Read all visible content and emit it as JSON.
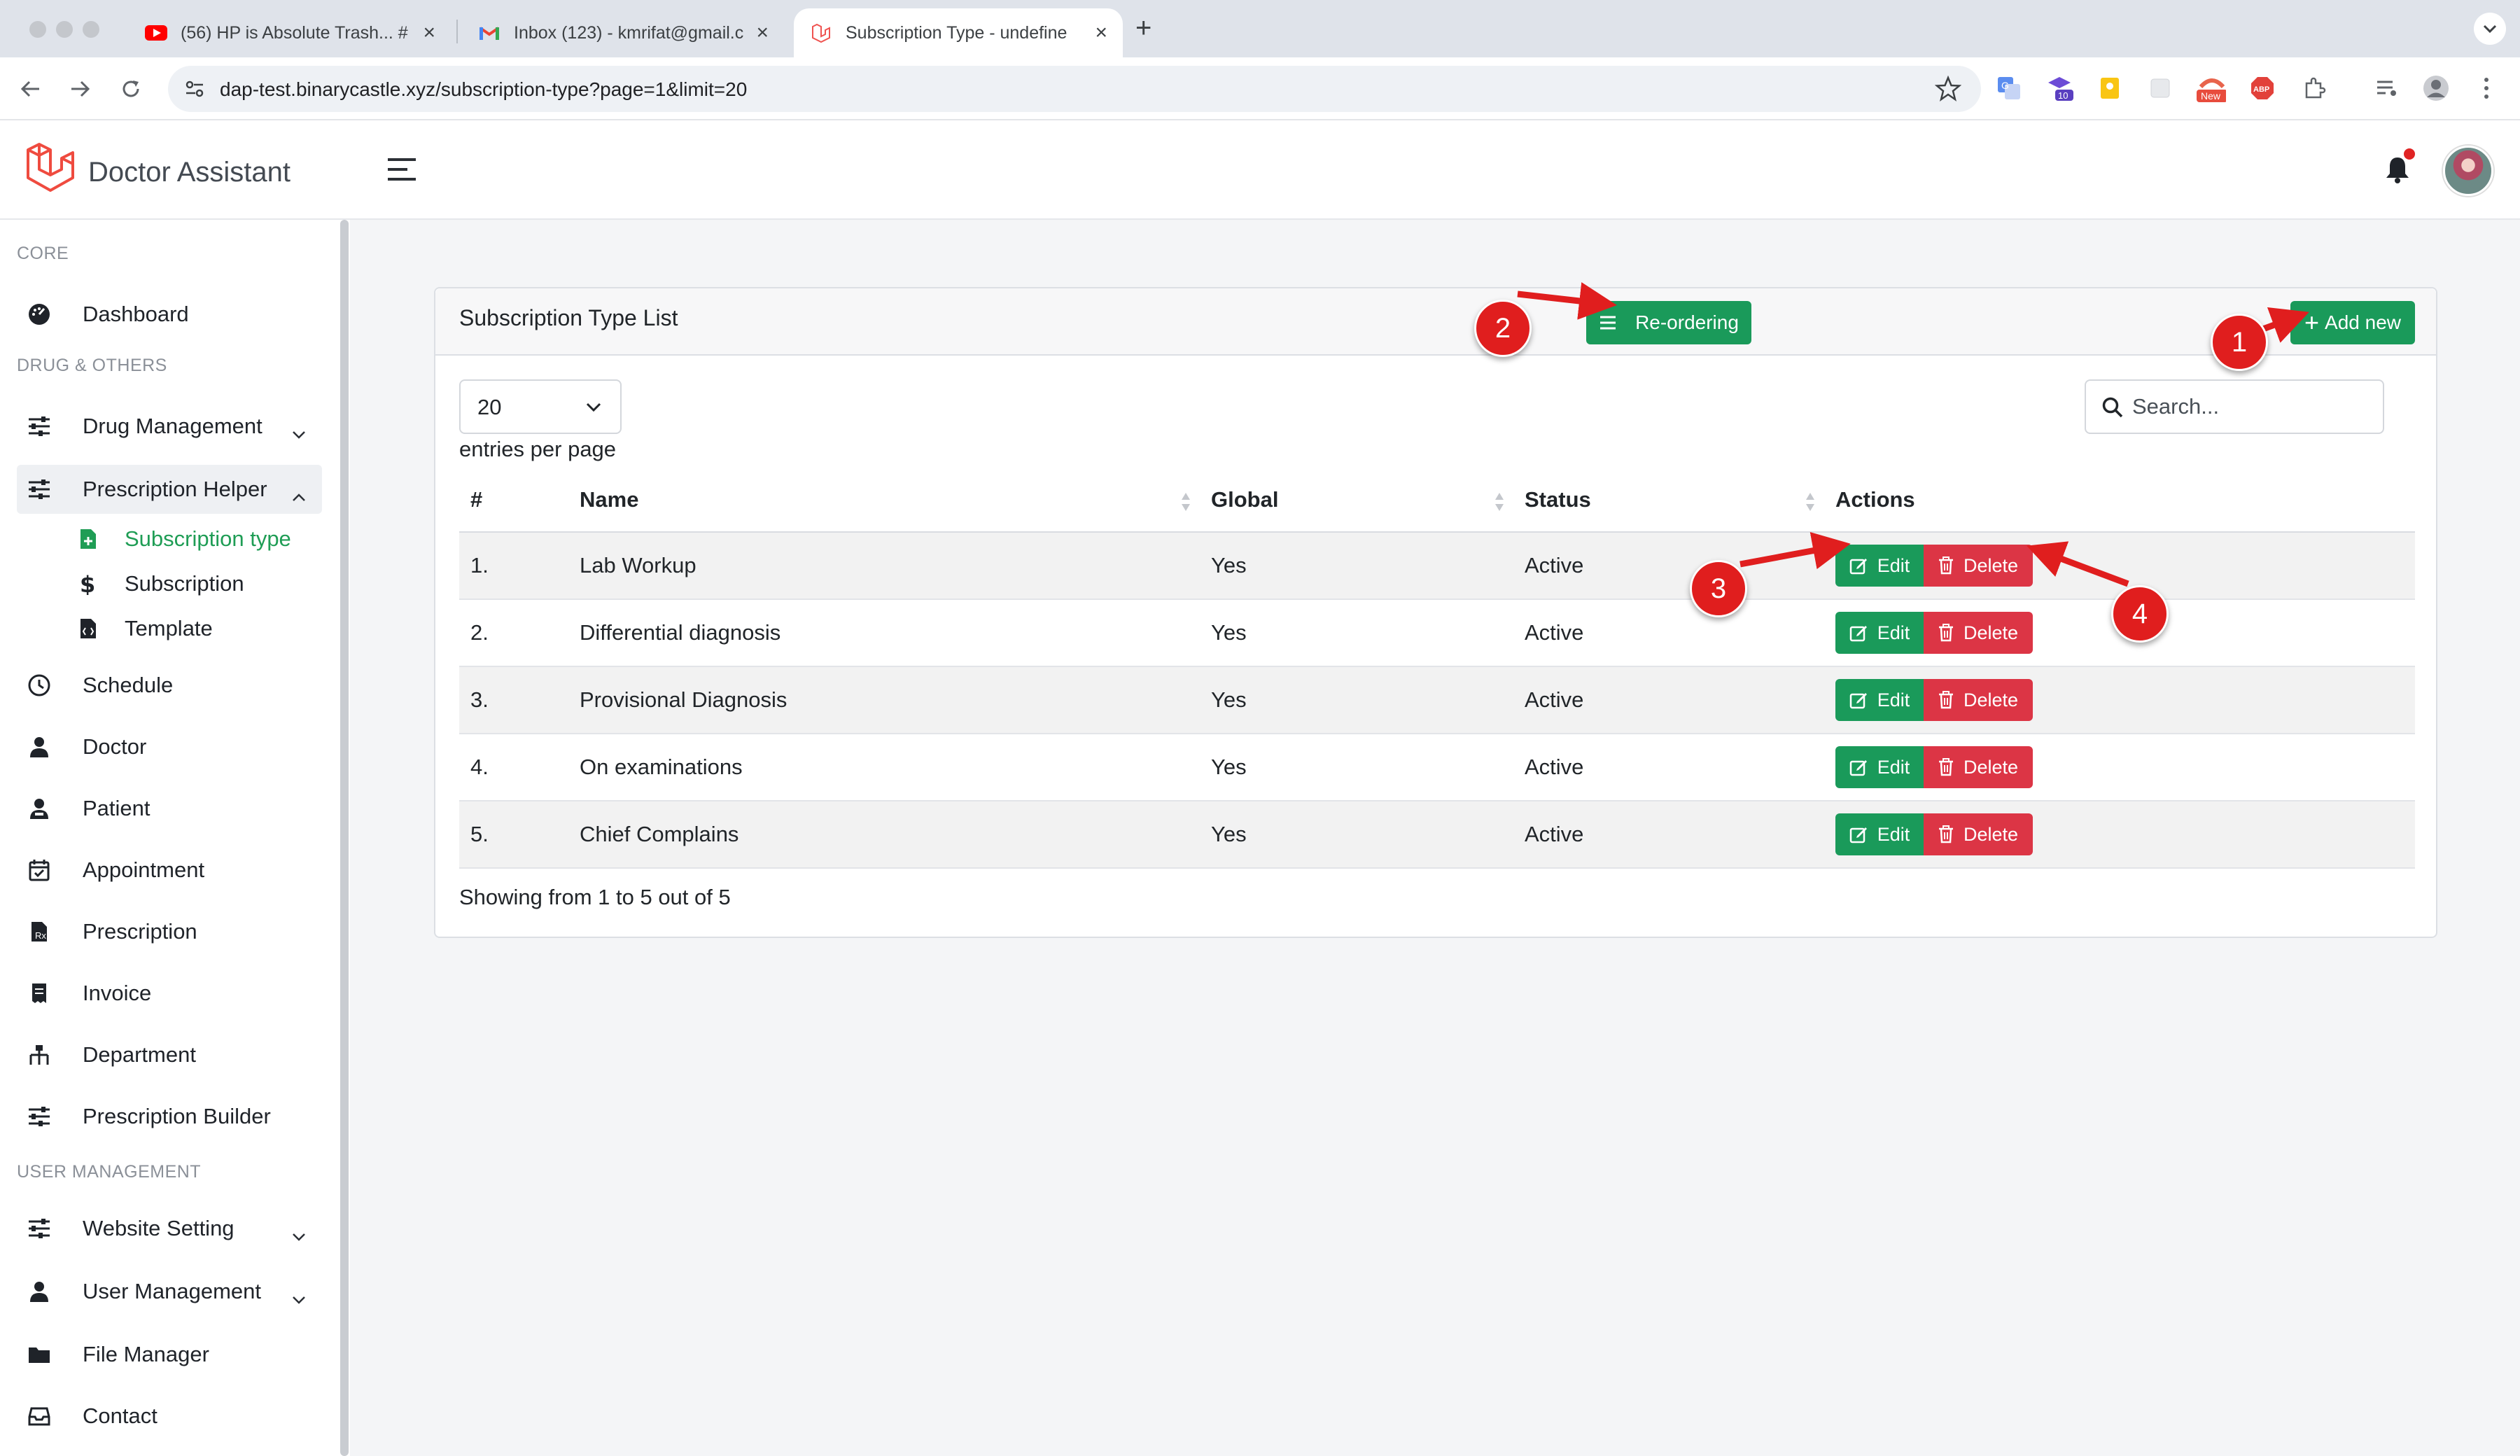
{
  "browser": {
    "tabs": [
      {
        "title": "(56) HP is Absolute Trash... #",
        "icon": "youtube-icon"
      },
      {
        "title": "Inbox (123) - kmrifat@gmail.c",
        "icon": "gmail-icon"
      },
      {
        "title": "Subscription Type - undefine",
        "icon": "laravel-icon",
        "active": true
      }
    ],
    "url": "dap-test.binarycastle.xyz/subscription-type?page=1&limit=20",
    "extensions": [
      "translate-icon",
      "extension-badge-10",
      "keep-icon",
      "blank-extension-icon",
      "new-badge-extension-icon",
      "adblock-icon",
      "puzzle-icon",
      "media-queue-icon",
      "profile-icon"
    ],
    "extension_badges": {
      "count": "10",
      "new": "New",
      "abp": "ABP"
    }
  },
  "header": {
    "brand": "Doctor Assistant"
  },
  "sidebar": {
    "sections": {
      "core": "CORE",
      "drug": "DRUG & OTHERS",
      "user": "USER MANAGEMENT"
    },
    "items": {
      "dashboard": "Dashboard",
      "drug_management": "Drug Management",
      "prescription_helper": "Prescription Helper",
      "subscription_type": "Subscription type",
      "subscription": "Subscription",
      "template": "Template",
      "schedule": "Schedule",
      "doctor": "Doctor",
      "patient": "Patient",
      "appointment": "Appointment",
      "prescription": "Prescription",
      "invoice": "Invoice",
      "department": "Department",
      "prescription_builder": "Prescription Builder",
      "website_setting": "Website Setting",
      "user_management": "User Management",
      "file_manager": "File Manager",
      "contact": "Contact"
    }
  },
  "card": {
    "title": "Subscription Type List",
    "reorder_label": "Re-ordering",
    "add_label": "Add new",
    "page_size": "20",
    "per_page_label": "entries per page",
    "search_placeholder": "Search...",
    "columns": {
      "num": "#",
      "name": "Name",
      "global": "Global",
      "status": "Status",
      "actions": "Actions"
    },
    "rows": [
      {
        "num": "1.",
        "name": "Lab Workup",
        "global": "Yes",
        "status": "Active"
      },
      {
        "num": "2.",
        "name": "Differential diagnosis",
        "global": "Yes",
        "status": "Active"
      },
      {
        "num": "3.",
        "name": "Provisional Diagnosis",
        "global": "Yes",
        "status": "Active"
      },
      {
        "num": "4.",
        "name": "On examinations",
        "global": "Yes",
        "status": "Active"
      },
      {
        "num": "5.",
        "name": "Chief Complains",
        "global": "Yes",
        "status": "Active"
      }
    ],
    "edit_label": "Edit",
    "delete_label": "Delete",
    "showing": "Showing from 1 to 5 out of 5"
  },
  "annotations": [
    "1",
    "2",
    "3",
    "4"
  ],
  "colors": {
    "primary_green": "#1a9a5a",
    "danger_red": "#dc3545",
    "marker_red": "#e01e1e"
  }
}
